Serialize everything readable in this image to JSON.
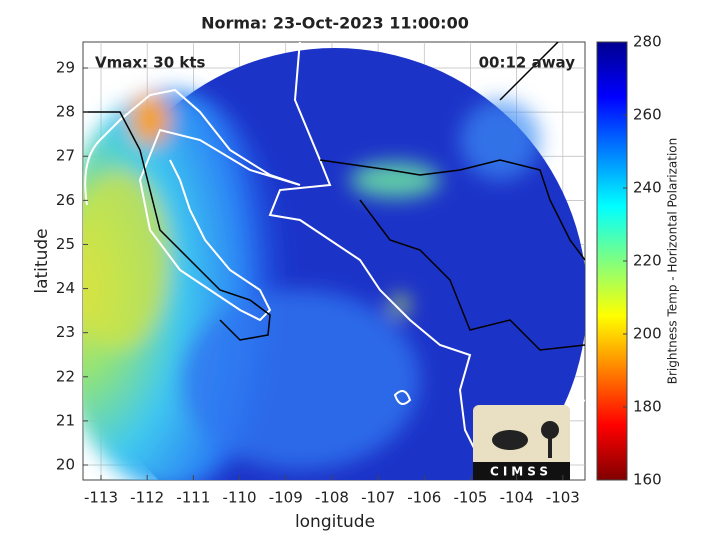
{
  "chart_data": {
    "type": "map",
    "title": "Norma: 23-Oct-2023 11:00:00",
    "annotations": [
      "Vmax: 30 kts",
      "00:12 away"
    ],
    "x_label": "longitude",
    "y_label": "latitude",
    "xlim": [
      -113.39,
      -102.52
    ],
    "xticks": [
      -113,
      -112,
      -111,
      -110,
      -109,
      -108,
      -107,
      -106,
      -105,
      -104,
      -103
    ],
    "ylim": [
      19.66,
      29.59
    ],
    "yticks": [
      20,
      21,
      22,
      23,
      24,
      25,
      26,
      27,
      28,
      29
    ],
    "grid": true,
    "colorbar": {
      "label": "Brightness Temp - Horizontal Polarization",
      "colormap": "jet",
      "lim": [
        160,
        280
      ],
      "ticks": [
        160,
        180,
        200,
        220,
        240,
        260,
        280
      ]
    },
    "logo": "CIMSS"
  }
}
